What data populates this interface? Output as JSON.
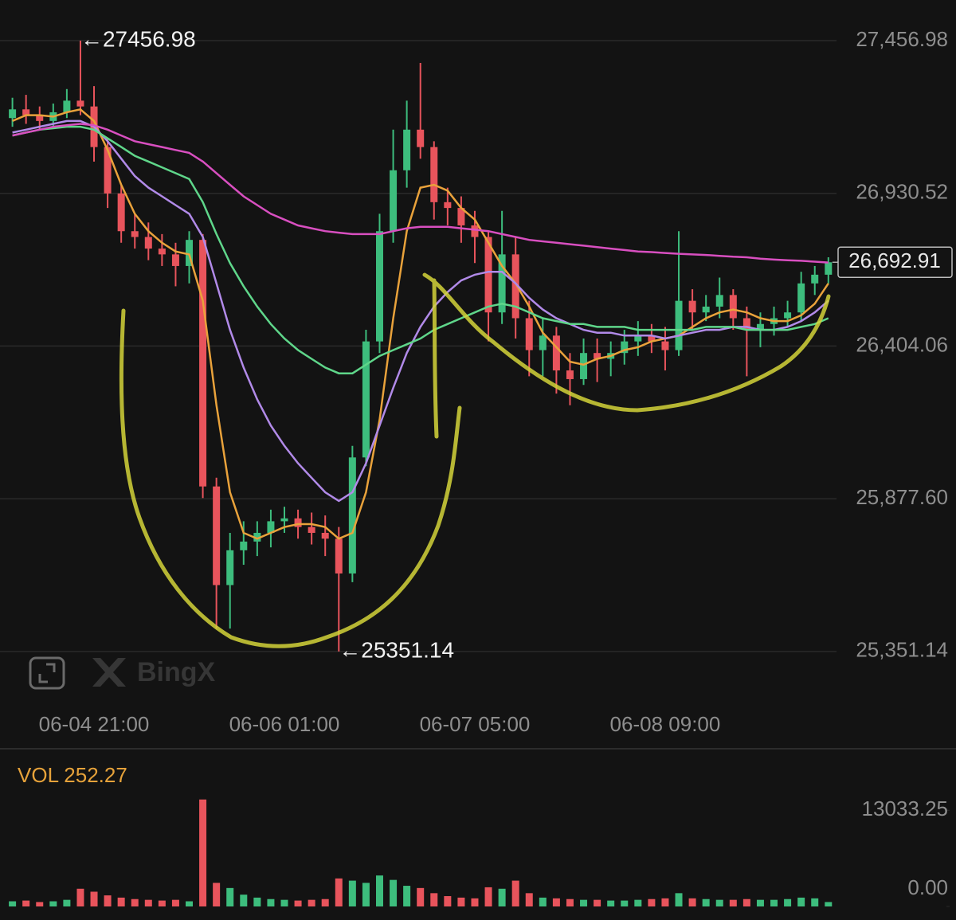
{
  "chart_data": [
    {
      "type": "candlestick",
      "categories": [
        null,
        null,
        null,
        null,
        null,
        null,
        "06-04 21:00",
        null,
        null,
        null,
        null,
        null,
        null,
        null,
        null,
        null,
        null,
        null,
        null,
        null,
        "06-06 01:00",
        null,
        null,
        null,
        null,
        null,
        null,
        null,
        null,
        null,
        null,
        null,
        null,
        null,
        "06-07 05:00",
        null,
        null,
        null,
        null,
        null,
        null,
        null,
        null,
        null,
        null,
        null,
        null,
        null,
        "06-08 09:00",
        null,
        null,
        null,
        null,
        null,
        null,
        null,
        null,
        null,
        null,
        null,
        null
      ],
      "open": [
        27190,
        27220,
        27200,
        27180,
        27210,
        27250,
        27230,
        27090,
        26930,
        26800,
        26780,
        26740,
        26720,
        26680,
        26770,
        25920,
        25580,
        25700,
        25730,
        25760,
        25800,
        25810,
        25780,
        25760,
        25740,
        25620,
        26020,
        26420,
        26800,
        27010,
        27150,
        27090,
        26900,
        26880,
        26820,
        26780,
        26520,
        26720,
        26500,
        26390,
        26440,
        26320,
        26290,
        26380,
        26360,
        26380,
        26420,
        26440,
        26420,
        26390,
        26560,
        26520,
        26540,
        26580,
        26500,
        26460,
        26480,
        26500,
        26520,
        26620,
        26650
      ],
      "high": [
        27260,
        27270,
        27230,
        27240,
        27290,
        27456.98,
        27300,
        27120,
        26960,
        26860,
        26830,
        26790,
        26760,
        26800,
        26790,
        25950,
        25760,
        25800,
        25800,
        25840,
        25850,
        25840,
        25830,
        25820,
        25780,
        26060,
        26460,
        26860,
        27150,
        27250,
        27380,
        27110,
        26950,
        26920,
        26870,
        26800,
        26870,
        26780,
        26560,
        26500,
        26470,
        26380,
        26430,
        26430,
        26420,
        26460,
        26490,
        26480,
        26470,
        26800,
        26600,
        26580,
        26640,
        26600,
        26540,
        26520,
        26540,
        26560,
        26660,
        26680,
        26710
      ],
      "low": [
        27160,
        27170,
        27150,
        27160,
        27190,
        27200,
        27040,
        26880,
        26760,
        26740,
        26700,
        26680,
        26610,
        26620,
        25880,
        25430,
        25430,
        25650,
        25680,
        25710,
        25760,
        25740,
        25720,
        25680,
        25351.14,
        25590,
        25990,
        26380,
        26760,
        26950,
        27050,
        26840,
        26820,
        26760,
        26690,
        26420,
        26480,
        26430,
        26300,
        26300,
        26240,
        26200,
        26270,
        26280,
        26300,
        26340,
        26370,
        26380,
        26320,
        26370,
        26460,
        26490,
        26500,
        26460,
        26300,
        26400,
        26440,
        26470,
        26490,
        26580,
        26620
      ],
      "close": [
        27220,
        27200,
        27180,
        27210,
        27250,
        27230,
        27090,
        26930,
        26800,
        26780,
        26740,
        26720,
        26680,
        26770,
        25920,
        25580,
        25700,
        25730,
        25760,
        25800,
        25810,
        25780,
        25760,
        25740,
        25620,
        26020,
        26420,
        26800,
        27010,
        27150,
        27090,
        26900,
        26880,
        26820,
        26780,
        26520,
        26720,
        26500,
        26390,
        26440,
        26320,
        26290,
        26380,
        26360,
        26380,
        26420,
        26440,
        26420,
        26390,
        26560,
        26520,
        26540,
        26580,
        26500,
        26460,
        26480,
        26500,
        26520,
        26620,
        26650,
        26692.91
      ],
      "up_color": "#3dbd7d",
      "down_color": "#e8545c",
      "series": [
        {
          "color": "#e9a23b",
          "values": [
            27180,
            27200,
            27200,
            27195,
            27210,
            27220,
            27180,
            27080,
            26960,
            26860,
            26800,
            26760,
            26730,
            26720,
            26560,
            26200,
            25900,
            25760,
            25740,
            25760,
            25780,
            25790,
            25790,
            25780,
            25740,
            25760,
            25900,
            26150,
            26500,
            26800,
            26950,
            26960,
            26940,
            26880,
            26840,
            26760,
            26680,
            26620,
            26540,
            26450,
            26400,
            26350,
            26340,
            26360,
            26370,
            26390,
            26400,
            26420,
            26430,
            26440,
            26470,
            26500,
            26520,
            26530,
            26520,
            26500,
            26490,
            26490,
            26510,
            26550,
            26620
          ]
        },
        {
          "color": "#b18ae8",
          "values": [
            27140,
            27150,
            27160,
            27170,
            27180,
            27180,
            27160,
            27110,
            27050,
            26990,
            26950,
            26920,
            26890,
            26860,
            26780,
            26620,
            26460,
            26330,
            26220,
            26130,
            26060,
            26000,
            25950,
            25900,
            25870,
            25900,
            26000,
            26130,
            26260,
            26380,
            26470,
            26540,
            26590,
            26630,
            26650,
            26660,
            26660,
            26620,
            26570,
            26530,
            26500,
            26480,
            26460,
            26450,
            26450,
            26440,
            26440,
            26440,
            26430,
            26440,
            26450,
            26460,
            26460,
            26470,
            26470,
            26460,
            26460,
            26470,
            26490,
            26520,
            26560
          ]
        },
        {
          "color": "#5fd68a",
          "values": [
            27130,
            27140,
            27150,
            27155,
            27160,
            27160,
            27150,
            27120,
            27090,
            27060,
            27040,
            27020,
            27000,
            26980,
            26900,
            26790,
            26690,
            26610,
            26540,
            26480,
            26430,
            26390,
            26360,
            26330,
            26310,
            26310,
            26340,
            26370,
            26390,
            26410,
            26430,
            26460,
            26480,
            26500,
            26520,
            26540,
            26550,
            26540,
            26520,
            26500,
            26490,
            26480,
            26480,
            26470,
            26470,
            26470,
            26460,
            26460,
            26460,
            26460,
            26460,
            26470,
            26470,
            26470,
            26460,
            26460,
            26460,
            26460,
            26470,
            26480,
            26500
          ]
        },
        {
          "color": "#d84fc0",
          "values": [
            27130,
            27140,
            27150,
            27160,
            27165,
            27170,
            27165,
            27150,
            27130,
            27110,
            27100,
            27090,
            27080,
            27070,
            27040,
            27000,
            26960,
            26920,
            26890,
            26860,
            26840,
            26820,
            26810,
            26800,
            26795,
            26790,
            26790,
            26790,
            26800,
            26810,
            26815,
            26815,
            26815,
            26810,
            26805,
            26800,
            26790,
            26780,
            26770,
            26765,
            26760,
            26755,
            26750,
            26745,
            26740,
            26735,
            26730,
            26728,
            26725,
            26722,
            26720,
            26718,
            26715,
            26712,
            26710,
            26705,
            26702,
            26700,
            26698,
            26695,
            26692
          ]
        }
      ],
      "ylim": [
        25186,
        27597
      ],
      "yticks": [
        {
          "value": 27456.98,
          "label": "27,456.98"
        },
        {
          "value": 26930.52,
          "label": "26,930.52"
        },
        {
          "value": 26404.06,
          "label": "26,404.06"
        },
        {
          "value": 25877.6,
          "label": "25,877.60"
        },
        {
          "value": 25351.14,
          "label": "25,351.14"
        }
      ],
      "grid": true,
      "high_label": {
        "value": 27456.98,
        "label": "←27456.98"
      },
      "low_label": {
        "value": 25351.14,
        "label": "←25351.14"
      },
      "last_price": {
        "value": 26692.91,
        "label": "26,692.91"
      },
      "watermark": "BingX"
    },
    {
      "type": "bar",
      "title": "VOL 252.27",
      "values": [
        700,
        800,
        600,
        700,
        900,
        2400,
        2000,
        1500,
        1200,
        1000,
        900,
        800,
        900,
        700,
        14500,
        3200,
        2500,
        1600,
        1200,
        1000,
        900,
        800,
        900,
        1000,
        3800,
        3500,
        3200,
        4200,
        3600,
        2800,
        2500,
        1800,
        1400,
        1200,
        1100,
        2600,
        2400,
        3500,
        1800,
        1200,
        1100,
        1000,
        900,
        900,
        800,
        800,
        900,
        1000,
        1100,
        1800,
        1100,
        1000,
        900,
        900,
        1000,
        900,
        900,
        1000,
        1200,
        1100,
        600
      ],
      "ylim": [
        0,
        14900
      ],
      "yticks": [
        13033.25,
        {
          "value": 0,
          "label": "0.00"
        }
      ]
    }
  ]
}
